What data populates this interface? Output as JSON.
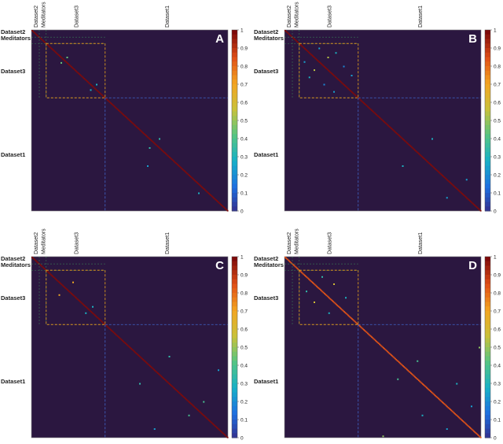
{
  "colors": {
    "background": "#2b1740",
    "frame": "#ffffff",
    "dataset3_box": "#d99a1e",
    "dataset1_line": "#3f66c9",
    "colorscale": [
      "#352a87",
      "#1e6ee0",
      "#16b0c8",
      "#55c583",
      "#c8c23a",
      "#f3a521",
      "#e04f16",
      "#7e0a0a"
    ]
  },
  "chart_data": [
    {
      "type": "heatmap",
      "panel_label": "A",
      "row_labels": [
        "Dataset2",
        "Meditators",
        "Dataset3",
        "Dataset1"
      ],
      "col_labels": [
        "Dataset2",
        "Meditators",
        "Dataset3",
        "Dataset1"
      ],
      "colorbar_ticks": [
        "1",
        "0.9",
        "0.8",
        "0.7",
        "0.6",
        "0.5",
        "0.4",
        "0.3",
        "0.2",
        "0.1",
        "0"
      ],
      "value_range": [
        0,
        1
      ],
      "n_subjects": 200,
      "group_bounds": [
        0,
        8,
        15,
        75,
        200
      ],
      "diagonal_value": 1.0,
      "offdiagonal": [
        {
          "row": 30,
          "col": 36,
          "value": 0.45
        },
        {
          "row": 36,
          "col": 30,
          "value": 0.45
        },
        {
          "row": 60,
          "col": 66,
          "value": 0.3
        },
        {
          "row": 66,
          "col": 60,
          "value": 0.3
        },
        {
          "row": 120,
          "col": 130,
          "value": 0.35
        },
        {
          "row": 130,
          "col": 120,
          "value": 0.35
        },
        {
          "row": 150,
          "col": 118,
          "value": 0.25
        },
        {
          "row": 180,
          "col": 170,
          "value": 0.3
        }
      ]
    },
    {
      "type": "heatmap",
      "panel_label": "B",
      "row_labels": [
        "Dataset2",
        "Meditators",
        "Dataset3",
        "Dataset1"
      ],
      "col_labels": [
        "Dataset2",
        "Meditators",
        "Dataset3",
        "Dataset1"
      ],
      "colorbar_ticks": [
        "1",
        "0.9",
        "0.8",
        "0.7",
        "0.6",
        "0.5",
        "0.4",
        "0.3",
        "0.2",
        "0.1",
        "0"
      ],
      "value_range": [
        0,
        1
      ],
      "n_subjects": 200,
      "group_bounds": [
        0,
        8,
        15,
        75,
        200
      ],
      "diagonal_value": 1.0,
      "offdiagonal": [
        {
          "row": 20,
          "col": 35,
          "value": 0.25
        },
        {
          "row": 35,
          "col": 20,
          "value": 0.25
        },
        {
          "row": 25,
          "col": 52,
          "value": 0.3
        },
        {
          "row": 52,
          "col": 25,
          "value": 0.3
        },
        {
          "row": 40,
          "col": 60,
          "value": 0.2
        },
        {
          "row": 60,
          "col": 40,
          "value": 0.2
        },
        {
          "row": 30,
          "col": 44,
          "value": 0.55
        },
        {
          "row": 44,
          "col": 30,
          "value": 0.55
        },
        {
          "row": 50,
          "col": 68,
          "value": 0.25
        },
        {
          "row": 68,
          "col": 50,
          "value": 0.25
        },
        {
          "row": 120,
          "col": 150,
          "value": 0.3
        },
        {
          "row": 150,
          "col": 120,
          "value": 0.3
        },
        {
          "row": 165,
          "col": 185,
          "value": 0.25
        },
        {
          "row": 185,
          "col": 165,
          "value": 0.25
        }
      ]
    },
    {
      "type": "heatmap",
      "panel_label": "C",
      "row_labels": [
        "Dataset2",
        "Meditators",
        "Dataset3",
        "Dataset1"
      ],
      "col_labels": [
        "Dataset2",
        "Meditators",
        "Dataset3",
        "Dataset1"
      ],
      "colorbar_ticks": [
        "1",
        "0.9",
        "0.8",
        "0.7",
        "0.6",
        "0.5",
        "0.4",
        "0.3",
        "0.2",
        "0.1",
        "0"
      ],
      "value_range": [
        0,
        1
      ],
      "n_subjects": 200,
      "group_bounds": [
        0,
        8,
        15,
        75,
        200
      ],
      "diagonal_value": 1.0,
      "offdiagonal": [
        {
          "row": 28,
          "col": 42,
          "value": 0.7
        },
        {
          "row": 42,
          "col": 28,
          "value": 0.7
        },
        {
          "row": 55,
          "col": 62,
          "value": 0.3
        },
        {
          "row": 62,
          "col": 55,
          "value": 0.3
        },
        {
          "row": 110,
          "col": 140,
          "value": 0.35
        },
        {
          "row": 140,
          "col": 110,
          "value": 0.35
        },
        {
          "row": 125,
          "col": 190,
          "value": 0.25
        },
        {
          "row": 190,
          "col": 125,
          "value": 0.25
        },
        {
          "row": 160,
          "col": 175,
          "value": 0.4
        },
        {
          "row": 175,
          "col": 160,
          "value": 0.4
        }
      ]
    },
    {
      "type": "heatmap",
      "panel_label": "D",
      "row_labels": [
        "Dataset2",
        "Meditators",
        "Dataset3",
        "Dataset1"
      ],
      "col_labels": [
        "Dataset2",
        "Meditators",
        "Dataset3",
        "Dataset1"
      ],
      "colorbar_ticks": [
        "1",
        "0.9",
        "0.8",
        "0.7",
        "0.6",
        "0.5",
        "0.4",
        "0.3",
        "0.2",
        "0.1",
        "0"
      ],
      "value_range": [
        0,
        1
      ],
      "n_subjects": 200,
      "group_bounds": [
        0,
        8,
        15,
        75,
        200
      ],
      "diagonal_value": 0.85,
      "offdiagonal": [
        {
          "row": 22,
          "col": 38,
          "value": 0.35
        },
        {
          "row": 38,
          "col": 22,
          "value": 0.35
        },
        {
          "row": 30,
          "col": 50,
          "value": 0.6
        },
        {
          "row": 50,
          "col": 30,
          "value": 0.6
        },
        {
          "row": 45,
          "col": 62,
          "value": 0.3
        },
        {
          "row": 62,
          "col": 45,
          "value": 0.3
        },
        {
          "row": 115,
          "col": 135,
          "value": 0.4
        },
        {
          "row": 135,
          "col": 115,
          "value": 0.4
        },
        {
          "row": 140,
          "col": 175,
          "value": 0.3
        },
        {
          "row": 175,
          "col": 140,
          "value": 0.3
        },
        {
          "row": 100,
          "col": 198,
          "value": 0.5
        },
        {
          "row": 198,
          "col": 100,
          "value": 0.5
        },
        {
          "row": 165,
          "col": 190,
          "value": 0.25
        },
        {
          "row": 190,
          "col": 165,
          "value": 0.25
        }
      ]
    }
  ]
}
